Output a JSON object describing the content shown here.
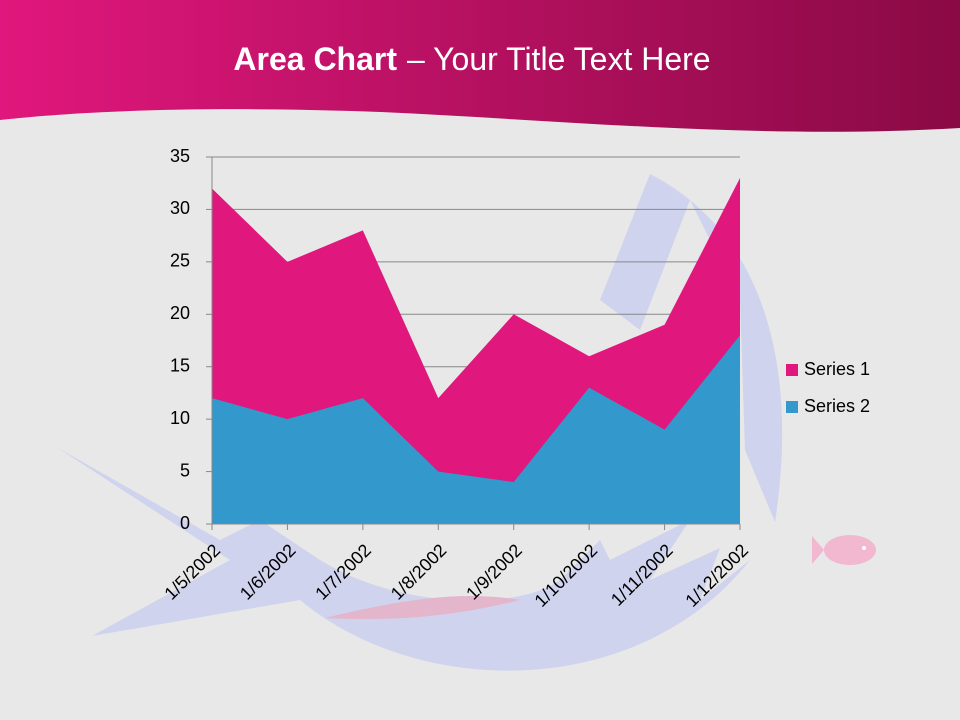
{
  "title": {
    "bold": "Area Chart",
    "rest": "– Your Title Text Here"
  },
  "chart_data": {
    "type": "area",
    "categories": [
      "1/5/2002",
      "1/6/2002",
      "1/7/2002",
      "1/8/2002",
      "1/9/2002",
      "1/10/2002",
      "1/11/2002",
      "1/12/2002"
    ],
    "series": [
      {
        "name": "Series 1",
        "color": "#e0177c",
        "values": [
          32,
          25,
          28,
          12,
          20,
          16,
          19,
          33
        ]
      },
      {
        "name": "Series 2",
        "color": "#3399cc",
        "values": [
          12,
          10,
          12,
          5,
          4,
          13,
          9,
          18
        ]
      }
    ],
    "ylim": [
      0,
      35
    ],
    "yticks": [
      0,
      5,
      10,
      15,
      20,
      25,
      30,
      35
    ],
    "grid": true,
    "legend": "right"
  }
}
